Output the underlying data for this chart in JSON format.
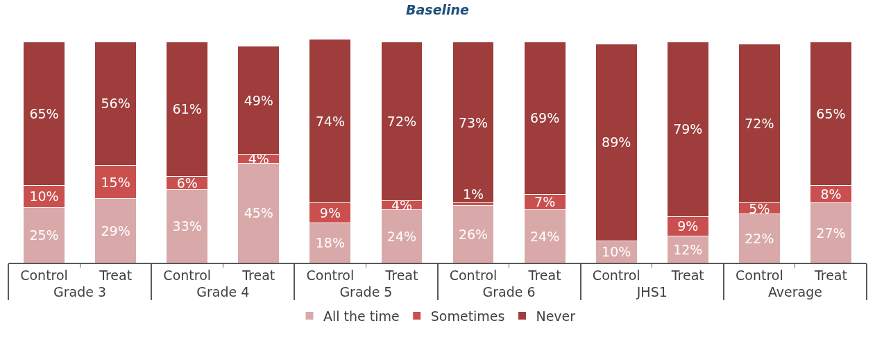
{
  "chart_data": {
    "type": "bar",
    "title": "Baseline",
    "stacked": true,
    "legend": "bottom",
    "categories": [
      "Control",
      "Treat",
      "Control",
      "Treat",
      "Control",
      "Treat",
      "Control",
      "Treat",
      "Control",
      "Treat",
      "Control",
      "Treat"
    ],
    "annotations": [
      "Grade 3",
      "Grade 4",
      "Grade 5",
      "Grade 6",
      "JHS1",
      "Average"
    ],
    "series": [
      {
        "name": "All the time",
        "color": "#d9a9a9",
        "values": [
          25,
          29,
          33,
          45,
          18,
          24,
          26,
          24,
          10,
          12,
          22,
          27
        ],
        "value_labels": [
          "25%",
          "29%",
          "33%",
          "45%",
          "18%",
          "24%",
          "26%",
          "24%",
          "10%",
          "12%",
          "22%",
          "27%"
        ]
      },
      {
        "name": "Sometimes",
        "color": "#c9504f",
        "values": [
          10,
          15,
          6,
          4,
          9,
          4,
          1,
          7,
          null,
          9,
          5,
          8
        ],
        "value_labels": [
          "10%",
          "15%",
          "6%",
          "4%",
          "9%",
          "4%",
          "1%",
          "7%",
          null,
          "9%",
          "5%",
          "8%"
        ]
      },
      {
        "name": "Never",
        "color": "#9e3d3b",
        "values": [
          65,
          56,
          61,
          49,
          74,
          72,
          73,
          69,
          89,
          79,
          72,
          65
        ],
        "value_labels": [
          "65%",
          "56%",
          "61%",
          "49%",
          "74%",
          "72%",
          "73%",
          "69%",
          "89%",
          "79%",
          "72%",
          "65%"
        ]
      }
    ]
  }
}
